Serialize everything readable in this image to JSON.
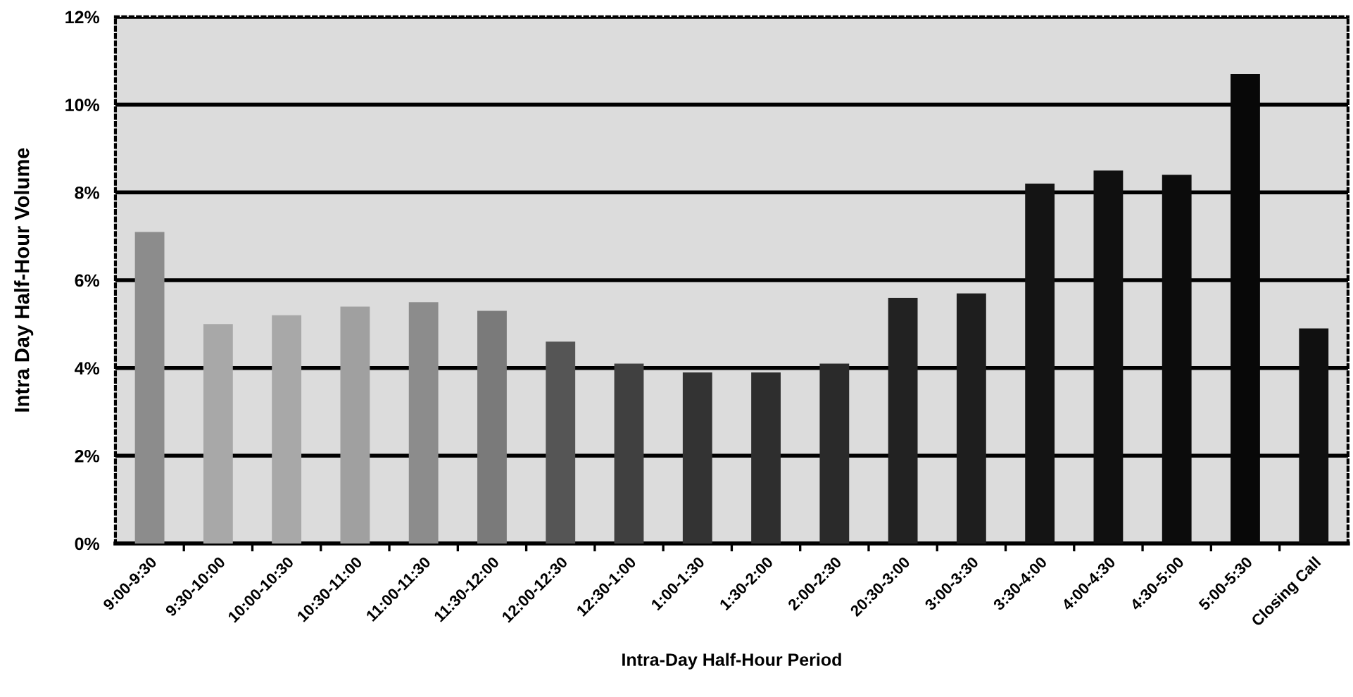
{
  "chart_data": {
    "type": "bar",
    "xlabel": "Intra-Day Half-Hour Period",
    "ylabel": "Intra Day Half-Hour Volume",
    "categories": [
      "9:00-9:30",
      "9:30-10:00",
      "10:00-10:30",
      "10:30-11:00",
      "11:00-11:30",
      "11:30-12:00",
      "12:00-12:30",
      "12:30-1:00",
      "1:00-1:30",
      "1:30-2:00",
      "2:00-2:30",
      "20:30-3:00",
      "3:00-3:30",
      "3:30-4:00",
      "4:00-4:30",
      "4:30-5:00",
      "5:00-5:30",
      "Closing Call"
    ],
    "values": [
      7.1,
      5.0,
      5.2,
      5.4,
      5.5,
      5.3,
      4.6,
      4.1,
      3.9,
      3.9,
      4.1,
      5.6,
      5.7,
      8.2,
      8.5,
      8.4,
      10.7,
      4.9
    ],
    "colors": [
      "#8c8c8c",
      "#a8a8a8",
      "#a8a8a8",
      "#a0a0a0",
      "#8c8c8c",
      "#7a7a7a",
      "#555555",
      "#404040",
      "#333333",
      "#2e2e2e",
      "#2a2a2a",
      "#222222",
      "#1e1e1e",
      "#141414",
      "#101010",
      "#0c0c0c",
      "#080808",
      "#101010"
    ],
    "ylim": [
      0,
      12
    ],
    "yticks": [
      {
        "value": 0,
        "label": "0%"
      },
      {
        "value": 2,
        "label": "2%"
      },
      {
        "value": 4,
        "label": "4%"
      },
      {
        "value": 6,
        "label": "6%"
      },
      {
        "value": 8,
        "label": "8%"
      },
      {
        "value": 10,
        "label": "10%"
      },
      {
        "value": 12,
        "label": "12%"
      }
    ],
    "grid": "y"
  }
}
